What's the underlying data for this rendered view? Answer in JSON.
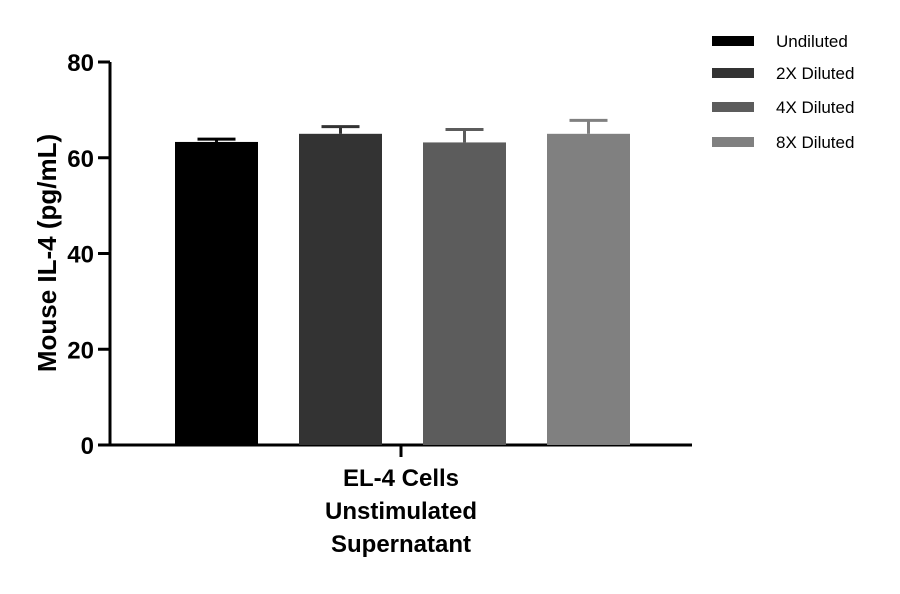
{
  "chart_data": {
    "type": "bar",
    "categories": [
      "EL-4 Cells Unstimulated Supernatant"
    ],
    "category_label_lines": [
      "EL-4 Cells",
      "Unstimulated",
      "Supernatant"
    ],
    "series": [
      {
        "name": "Undiluted",
        "values": [
          63.3
        ],
        "error": [
          0.6
        ],
        "color": "#000000"
      },
      {
        "name": "2X Diluted",
        "values": [
          65.0
        ],
        "error": [
          1.5
        ],
        "color": "#333333"
      },
      {
        "name": "4X Diluted",
        "values": [
          63.2
        ],
        "error": [
          2.7
        ],
        "color": "#5c5c5c"
      },
      {
        "name": "8X Diluted",
        "values": [
          65.0
        ],
        "error": [
          2.8
        ],
        "color": "#808080"
      }
    ],
    "ylabel": "Mouse IL-4 (pg/mL)",
    "ylim": [
      0,
      80
    ],
    "yticks": [
      0,
      20,
      40,
      60,
      80
    ],
    "grid": false,
    "legend": "top-right"
  }
}
